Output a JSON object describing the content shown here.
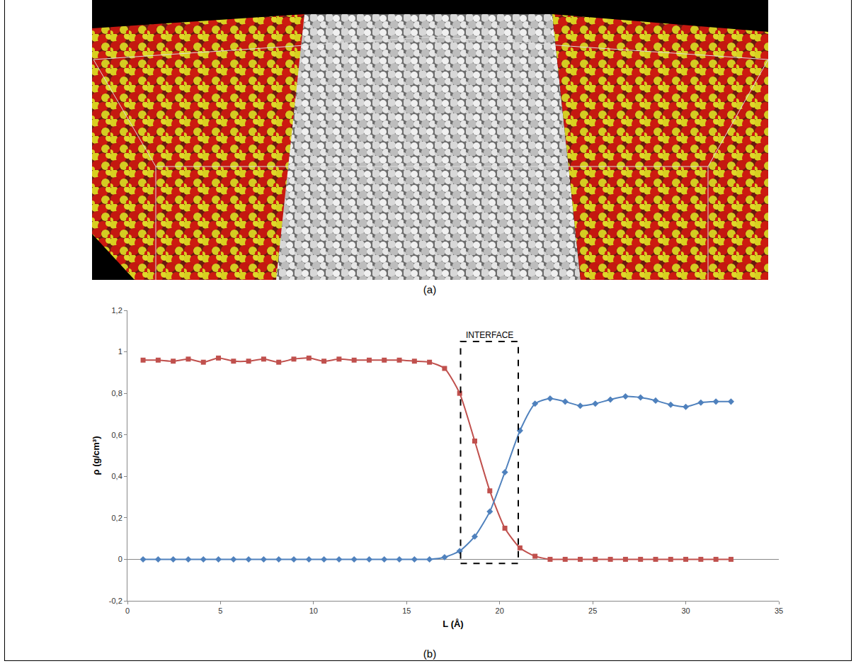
{
  "figure_labels": [
    "(a)",
    "(b)"
  ],
  "chart_data": {
    "type": "line",
    "x_label": "L (Å)",
    "y_label": "ρ (g/cm³)",
    "x": [
      0.84,
      1.65,
      2.46,
      3.27,
      4.08,
      4.89,
      5.7,
      6.51,
      7.32,
      8.13,
      8.94,
      9.75,
      10.56,
      11.37,
      12.18,
      12.99,
      13.8,
      14.61,
      15.42,
      16.23,
      17.04,
      17.85,
      18.66,
      19.47,
      20.28,
      21.09,
      21.9,
      22.71,
      23.52,
      24.33,
      25.14,
      25.95,
      26.76,
      27.57,
      28.38,
      29.19,
      30.0,
      30.81,
      31.62,
      32.43
    ],
    "series": [
      {
        "color": "#c0504d",
        "marker": "square",
        "line_style": "solid",
        "values": [
          0.96,
          0.96,
          0.955,
          0.965,
          0.95,
          0.97,
          0.955,
          0.955,
          0.965,
          0.95,
          0.965,
          0.97,
          0.955,
          0.965,
          0.96,
          0.96,
          0.96,
          0.96,
          0.955,
          0.95,
          0.92,
          0.8,
          0.57,
          0.33,
          0.15,
          0.055,
          0.015,
          0,
          0,
          0,
          0,
          0,
          0,
          0,
          0,
          0,
          0,
          0,
          0,
          0
        ]
      },
      {
        "color": "#4f81bd",
        "marker": "diamond",
        "line_style": "solid",
        "values": [
          0,
          0,
          0,
          0,
          0,
          0,
          0,
          0,
          0,
          0,
          0,
          0,
          0,
          0,
          0,
          0,
          0,
          0,
          0,
          0,
          0.01,
          0.04,
          0.11,
          0.23,
          0.42,
          0.62,
          0.75,
          0.775,
          0.76,
          0.74,
          0.75,
          0.77,
          0.785,
          0.78,
          0.765,
          0.745,
          0.735,
          0.755,
          0.76,
          0.76
        ]
      }
    ],
    "xlim": [
      0,
      35
    ],
    "xticks": [
      0,
      5,
      10,
      15,
      20,
      25,
      30,
      35
    ],
    "ylim": [
      -0.2,
      1.2
    ],
    "yticks": [
      {
        "value": -0.2,
        "label": "-0,2"
      },
      0,
      {
        "value": 0.2,
        "label": "0,2"
      },
      {
        "value": 0.4,
        "label": "0,4"
      },
      {
        "value": 0.6,
        "label": "0,6"
      },
      {
        "value": 0.8,
        "label": "0,8"
      },
      1,
      {
        "value": 1.2,
        "label": "1,2"
      }
    ],
    "grid": false,
    "annotations": [
      {
        "text": "INTERFACE",
        "x": [
          17.9,
          21.0
        ],
        "y": [
          -0.02,
          1.05
        ]
      }
    ]
  }
}
